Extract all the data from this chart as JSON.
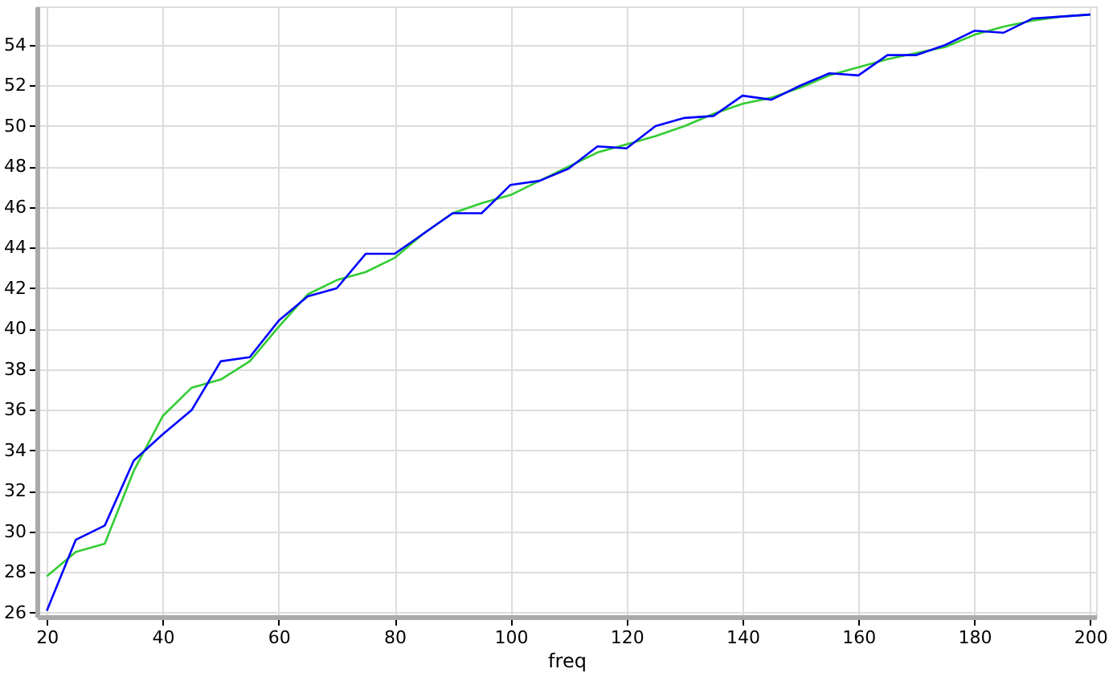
{
  "chart_data": {
    "type": "line",
    "xlabel": "freq",
    "x": [
      20,
      25,
      30,
      35,
      40,
      45,
      50,
      55,
      60,
      65,
      70,
      75,
      80,
      85,
      90,
      95,
      100,
      105,
      110,
      115,
      120,
      125,
      130,
      135,
      140,
      145,
      150,
      155,
      160,
      165,
      170,
      175,
      180,
      185,
      190,
      195,
      200
    ],
    "series": [
      {
        "color": "#0000ff",
        "values": [
          26.1,
          29.6,
          30.3,
          33.5,
          34.8,
          36.0,
          38.4,
          38.6,
          40.4,
          41.6,
          42.0,
          43.7,
          43.7,
          44.7,
          45.7,
          45.7,
          47.1,
          47.3,
          47.9,
          49.0,
          48.9,
          50.0,
          50.4,
          50.5,
          51.5,
          51.3,
          52.0,
          52.6,
          52.5,
          53.5,
          53.5,
          54.0,
          54.7,
          54.6,
          55.3,
          55.4,
          55.5
        ]
      },
      {
        "color": "#33cc33",
        "values": [
          27.8,
          29.0,
          29.4,
          33.0,
          35.7,
          37.1,
          37.5,
          38.4,
          40.1,
          41.7,
          42.4,
          42.8,
          43.5,
          44.7,
          45.7,
          46.2,
          46.6,
          47.3,
          48.0,
          48.7,
          49.1,
          49.5,
          50.0,
          50.6,
          51.1,
          51.4,
          51.9,
          52.5,
          52.9,
          53.3,
          53.6,
          53.9,
          54.5,
          54.9,
          55.2,
          55.4,
          55.5
        ]
      }
    ],
    "xlim": [
      18.3,
      201
    ],
    "ylim": [
      25.8,
      55.9
    ],
    "xticks": [
      20,
      40,
      60,
      80,
      100,
      120,
      140,
      160,
      180,
      200
    ],
    "yticks": [
      26,
      28,
      30,
      32,
      34,
      36,
      38,
      40,
      42,
      44,
      46,
      48,
      50,
      52,
      54
    ],
    "grid": true,
    "legend": false,
    "marker": "none",
    "line_style": "solid"
  }
}
